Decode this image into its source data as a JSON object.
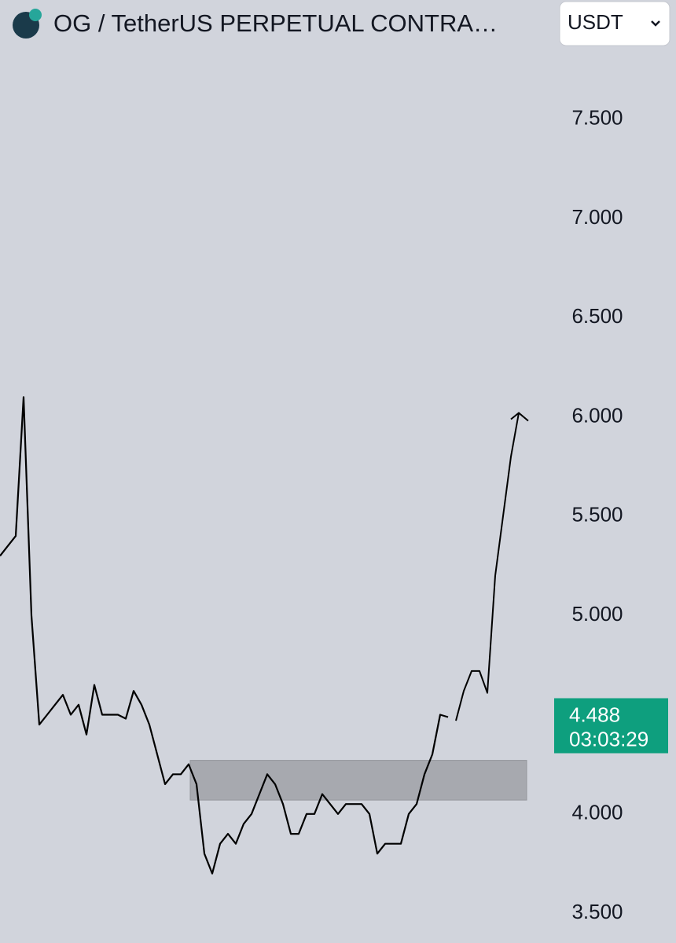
{
  "chart_data": {
    "type": "line",
    "title": "OG / TetherUS PERPETUAL CONTRA…",
    "currency": "USDT",
    "series": [
      {
        "color": "#000000",
        "values": [
          5.3,
          5.35,
          5.4,
          6.1,
          5.0,
          4.45,
          4.5,
          4.55,
          4.6,
          4.5,
          4.55,
          4.4,
          4.65,
          4.5,
          4.5,
          4.5,
          4.48,
          4.62,
          4.55,
          4.45,
          4.3,
          4.15,
          4.2,
          4.2,
          4.25,
          4.15,
          3.8,
          3.7,
          3.85,
          3.9,
          3.85,
          3.95,
          4.0,
          4.1,
          4.2,
          4.15,
          4.05,
          3.9,
          3.9,
          4.0,
          4.0,
          4.1,
          4.05,
          4.0,
          4.05,
          4.05,
          4.05,
          4.0,
          3.8,
          3.85,
          3.85,
          3.85,
          4.0,
          4.05,
          4.2,
          4.3,
          4.5,
          4.488,
          null,
          null,
          null,
          null,
          null,
          null,
          null,
          null,
          null
        ]
      },
      {
        "color": "#000000",
        "values": [
          null,
          null,
          null,
          null,
          null,
          null,
          null,
          null,
          null,
          null,
          null,
          null,
          null,
          null,
          null,
          null,
          null,
          null,
          null,
          null,
          null,
          null,
          null,
          null,
          null,
          null,
          null,
          null,
          null,
          null,
          null,
          null,
          null,
          null,
          null,
          null,
          null,
          null,
          null,
          null,
          null,
          null,
          null,
          null,
          null,
          null,
          null,
          null,
          null,
          null,
          null,
          null,
          null,
          null,
          null,
          null,
          null,
          null,
          4.47,
          4.62,
          4.72,
          4.72,
          4.61,
          5.2,
          5.5,
          5.8,
          6.02
        ]
      }
    ],
    "zone": {
      "low": 4.07,
      "high": 4.27,
      "color": "#a3a5ab"
    },
    "last_price": 4.488,
    "countdown": "03:03:29",
    "price_tag_color": "#0e9f7e",
    "ylim": [
      3.35,
      8.1
    ],
    "yticks": [
      {
        "value": 3.5,
        "label": "3.500"
      },
      {
        "value": 4.0,
        "label": "4.000"
      },
      {
        "value": 5.0,
        "label": "5.000"
      },
      {
        "value": 5.5,
        "label": "5.500"
      },
      {
        "value": 6.0,
        "label": "6.000"
      },
      {
        "value": 6.5,
        "label": "6.500"
      },
      {
        "value": 7.0,
        "label": "7.000"
      },
      {
        "value": 7.5,
        "label": "7.500"
      }
    ]
  }
}
